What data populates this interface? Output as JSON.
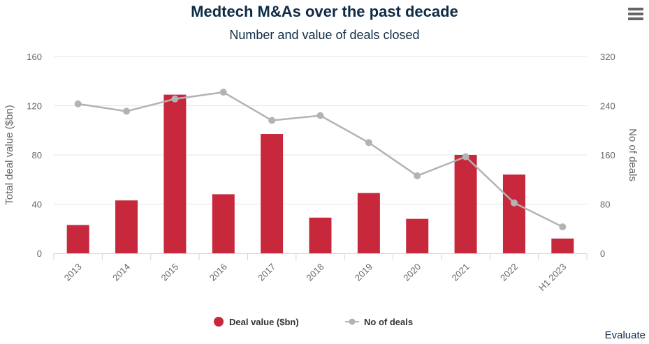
{
  "chart_data": {
    "type": "bar",
    "title": "Medtech M&As over the past decade",
    "subtitle": "Number and value of deals closed",
    "categories": [
      "2013",
      "2014",
      "2015",
      "2016",
      "2017",
      "2018",
      "2019",
      "2020",
      "2021",
      "2022",
      "H1 2023"
    ],
    "series": [
      {
        "name": "Deal value ($bn)",
        "type": "bar",
        "axis": "left",
        "color": "#c8283c",
        "values": [
          23,
          43,
          129,
          48,
          97,
          29,
          49,
          28,
          80,
          64,
          12
        ]
      },
      {
        "name": "No of deals",
        "type": "line",
        "axis": "right",
        "color": "#b3b3b3",
        "values": [
          243,
          231,
          251,
          262,
          216,
          224,
          180,
          126,
          157,
          82,
          43
        ]
      }
    ],
    "y_left": {
      "label": "Total deal value ($bn)",
      "ylim": [
        0,
        160
      ],
      "ticks": [
        0,
        40,
        80,
        120,
        160
      ]
    },
    "y_right": {
      "label": "No of deals",
      "ylim": [
        0,
        320
      ],
      "ticks": [
        0,
        80,
        160,
        240,
        320
      ]
    },
    "xlabel": "",
    "grid": true,
    "legend": "bottom-center",
    "credit": "Evaluate"
  },
  "menu": {
    "icon": "hamburger-menu-icon"
  }
}
